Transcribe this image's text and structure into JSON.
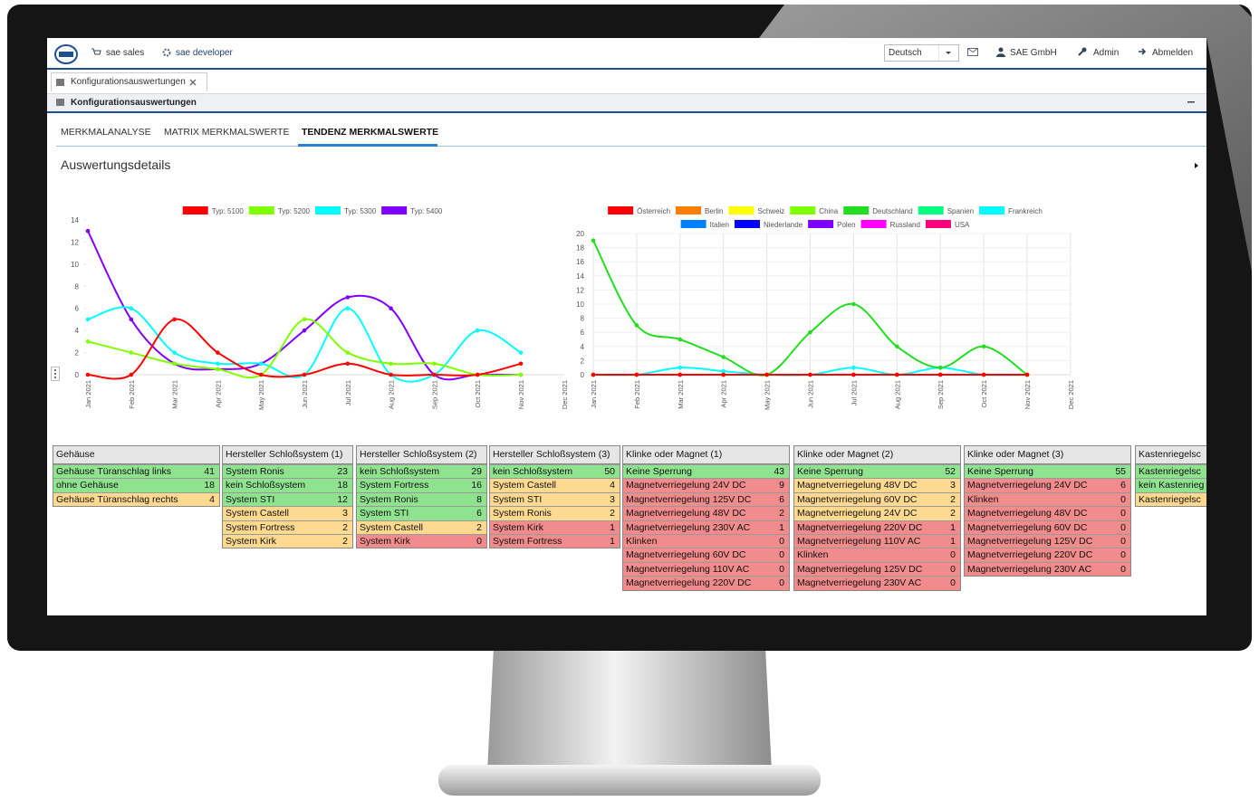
{
  "header": {
    "nav": [
      "sae sales",
      "sae developer"
    ],
    "language": "Deutsch",
    "company": "SAE GmbH",
    "user": "Admin",
    "logout": "Abmelden"
  },
  "tab": "Konfigurationsauswertungen",
  "panel_title": "Konfigurationsauswertungen",
  "subtabs": [
    "MERKMALANALYSE",
    "MATRIX MERKMALSWERTE",
    "TENDENZ MERKMALSWERTE"
  ],
  "section_title": "Auswertungsdetails",
  "chart_data": [
    {
      "type": "line",
      "legend": "top",
      "grid": false,
      "categories": [
        "Jan 2021",
        "Feb 2021",
        "Mar 2021",
        "Apr 2021",
        "May 2021",
        "Jun 2021",
        "Jul 2021",
        "Aug 2021",
        "Sep 2021",
        "Oct 2021",
        "Nov 2021",
        "Dec 2021"
      ],
      "ylim": [
        0,
        14
      ],
      "yticks": [
        0,
        2,
        4,
        6,
        8,
        10,
        12,
        14
      ],
      "series": [
        {
          "name": "Typ: 5100",
          "color": "#ff0000",
          "values": [
            0,
            0,
            5,
            2,
            0,
            0,
            1,
            0,
            0,
            0,
            1,
            null
          ]
        },
        {
          "name": "Typ: 5200",
          "color": "#80ff00",
          "values": [
            3,
            2,
            1,
            0.5,
            0,
            5,
            2,
            1,
            1,
            0,
            0,
            null
          ]
        },
        {
          "name": "Typ: 5300",
          "color": "#00ffff",
          "values": [
            5,
            6,
            2,
            1,
            1,
            0,
            6,
            0,
            0,
            4,
            2,
            null
          ]
        },
        {
          "name": "Typ: 5400",
          "color": "#8000ff",
          "values": [
            13,
            5,
            1,
            0.5,
            1,
            4,
            7,
            6,
            0,
            0,
            0,
            null
          ]
        }
      ]
    },
    {
      "type": "line",
      "legend": "top",
      "grid": true,
      "categories": [
        "Jan 2021",
        "Feb 2021",
        "Mar 2021",
        "Apr 2021",
        "May 2021",
        "Jun 2021",
        "Jul 2021",
        "Aug 2021",
        "Sep 2021",
        "Oct 2021",
        "Nov 2021",
        "Dec 2021"
      ],
      "ylim": [
        0,
        20
      ],
      "yticks": [
        0,
        2,
        4,
        6,
        8,
        10,
        12,
        14,
        16,
        18,
        20
      ],
      "series": [
        {
          "name": "Österreich",
          "color": "#ff0000",
          "values": [
            0,
            0,
            0,
            0,
            0,
            0,
            0,
            0,
            0,
            0,
            0,
            null
          ]
        },
        {
          "name": "Berlin",
          "color": "#ff8000",
          "values": [
            0,
            0,
            0,
            0,
            0,
            0,
            0,
            0,
            0,
            0,
            0,
            null
          ]
        },
        {
          "name": "Schweiz",
          "color": "#ffff00",
          "values": [
            0,
            0,
            0,
            0,
            0,
            0,
            0,
            0,
            0,
            0,
            0,
            null
          ]
        },
        {
          "name": "China",
          "color": "#80ff00",
          "values": [
            0,
            0,
            0,
            0,
            0,
            0,
            0,
            0,
            0,
            0,
            0,
            null
          ]
        },
        {
          "name": "Deutschland",
          "color": "#22dd22",
          "values": [
            19,
            7,
            5,
            2.5,
            0,
            6,
            10,
            4,
            1,
            4,
            0,
            null
          ]
        },
        {
          "name": "Spanien",
          "color": "#00ff80",
          "values": [
            0,
            0,
            0,
            0,
            0,
            0,
            0,
            0,
            0,
            0,
            0,
            null
          ]
        },
        {
          "name": "Frankreich",
          "color": "#00ffff",
          "values": [
            0,
            0,
            1,
            0.5,
            0,
            0,
            1,
            0,
            1,
            0,
            0,
            null
          ]
        },
        {
          "name": "Italien",
          "color": "#0080ff",
          "values": [
            0,
            0,
            0,
            0,
            0,
            0,
            0,
            0,
            0,
            0,
            0,
            null
          ]
        },
        {
          "name": "Niederlande",
          "color": "#0000ff",
          "values": [
            0,
            0,
            0,
            0,
            0,
            0,
            0,
            0,
            0,
            0,
            0,
            null
          ]
        },
        {
          "name": "Polen",
          "color": "#8000ff",
          "values": [
            0,
            0,
            0,
            0,
            0,
            0,
            0,
            0,
            0,
            0,
            0,
            null
          ]
        },
        {
          "name": "Russland",
          "color": "#ff00ff",
          "values": [
            0,
            0,
            0,
            0,
            0,
            0,
            0,
            0,
            0,
            0,
            0,
            null
          ]
        },
        {
          "name": "USA",
          "color": "#ff0080",
          "values": [
            0,
            0,
            0,
            0,
            0,
            0,
            0,
            0,
            0,
            0,
            0,
            null
          ]
        }
      ]
    }
  ],
  "tables": [
    {
      "title": "Gehäuse",
      "rows": [
        {
          "label": "Gehäuse Türanschlag links",
          "value": 41,
          "color": "#8fe38f"
        },
        {
          "label": "ohne Gehäuse",
          "value": 18,
          "color": "#8fe38f"
        },
        {
          "label": "Gehäuse Türanschlag rechts",
          "value": 4,
          "color": "#ffd98f"
        }
      ]
    },
    {
      "title": "Hersteller Schloßsystem (1)",
      "rows": [
        {
          "label": "System Ronis",
          "value": 23,
          "color": "#8fe38f"
        },
        {
          "label": "kein Schloßsystem",
          "value": 18,
          "color": "#8fe38f"
        },
        {
          "label": "System STI",
          "value": 12,
          "color": "#8fe38f"
        },
        {
          "label": "System Castell",
          "value": 3,
          "color": "#ffd98f"
        },
        {
          "label": "System Fortress",
          "value": 2,
          "color": "#ffd98f"
        },
        {
          "label": "System Kirk",
          "value": 2,
          "color": "#ffd98f"
        }
      ]
    },
    {
      "title": "Hersteller Schloßsystem (2)",
      "rows": [
        {
          "label": "kein Schloßsystem",
          "value": 29,
          "color": "#8fe38f"
        },
        {
          "label": "System Fortress",
          "value": 16,
          "color": "#8fe38f"
        },
        {
          "label": "System Ronis",
          "value": 8,
          "color": "#8fe38f"
        },
        {
          "label": "System STI",
          "value": 6,
          "color": "#8fe38f"
        },
        {
          "label": "System Castell",
          "value": 2,
          "color": "#ffd98f"
        },
        {
          "label": "System Kirk",
          "value": 0,
          "color": "#f28b8b"
        }
      ]
    },
    {
      "title": "Hersteller Schloßsystem (3)",
      "rows": [
        {
          "label": "kein Schloßsystem",
          "value": 50,
          "color": "#8fe38f"
        },
        {
          "label": "System Castell",
          "value": 4,
          "color": "#ffd98f"
        },
        {
          "label": "System STI",
          "value": 3,
          "color": "#ffd98f"
        },
        {
          "label": "System Ronis",
          "value": 2,
          "color": "#ffd98f"
        },
        {
          "label": "System Kirk",
          "value": 1,
          "color": "#f28b8b"
        },
        {
          "label": "System Fortress",
          "value": 1,
          "color": "#f28b8b"
        }
      ]
    },
    {
      "title": "Klinke oder Magnet (1)",
      "rows": [
        {
          "label": "Keine Sperrung",
          "value": 43,
          "color": "#8fe38f"
        },
        {
          "label": "Magnetverriegelung 24V DC",
          "value": 9,
          "color": "#f28b8b"
        },
        {
          "label": "Magnetverriegelung 125V DC",
          "value": 6,
          "color": "#f28b8b"
        },
        {
          "label": "Magnetverriegelung 48V DC",
          "value": 2,
          "color": "#f28b8b"
        },
        {
          "label": "Magnetverriegelung 230V AC",
          "value": 1,
          "color": "#f28b8b"
        },
        {
          "label": "Klinken",
          "value": 0,
          "color": "#f28b8b"
        },
        {
          "label": "Magnetverriegelung 60V DC",
          "value": 0,
          "color": "#f28b8b"
        },
        {
          "label": "Magnetverriegelung 110V AC",
          "value": 0,
          "color": "#f28b8b"
        },
        {
          "label": "Magnetverriegelung 220V DC",
          "value": 0,
          "color": "#f28b8b"
        }
      ]
    },
    {
      "title": "Klinke oder Magnet (2)",
      "rows": [
        {
          "label": "Keine Sperrung",
          "value": 52,
          "color": "#8fe38f"
        },
        {
          "label": "Magnetverriegelung 48V DC",
          "value": 3,
          "color": "#ffd98f"
        },
        {
          "label": "Magnetverriegelung 60V DC",
          "value": 2,
          "color": "#ffd98f"
        },
        {
          "label": "Magnetverriegelung 24V DC",
          "value": 2,
          "color": "#ffd98f"
        },
        {
          "label": "Magnetverriegelung 220V DC",
          "value": 1,
          "color": "#f28b8b"
        },
        {
          "label": "Magnetverriegelung 110V AC",
          "value": 1,
          "color": "#f28b8b"
        },
        {
          "label": "Klinken",
          "value": 0,
          "color": "#f28b8b"
        },
        {
          "label": "Magnetverriegelung 125V DC",
          "value": 0,
          "color": "#f28b8b"
        },
        {
          "label": "Magnetverriegelung 230V AC",
          "value": 0,
          "color": "#f28b8b"
        }
      ]
    },
    {
      "title": "Klinke oder Magnet (3)",
      "rows": [
        {
          "label": "Keine Sperrung",
          "value": 55,
          "color": "#8fe38f"
        },
        {
          "label": "Magnetverriegelung 24V DC",
          "value": 6,
          "color": "#f28b8b"
        },
        {
          "label": "Klinken",
          "value": 0,
          "color": "#f28b8b"
        },
        {
          "label": "Magnetverriegelung 48V DC",
          "value": 0,
          "color": "#f28b8b"
        },
        {
          "label": "Magnetverriegelung 60V DC",
          "value": 0,
          "color": "#f28b8b"
        },
        {
          "label": "Magnetverriegelung 125V DC",
          "value": 0,
          "color": "#f28b8b"
        },
        {
          "label": "Magnetverriegelung 220V DC",
          "value": 0,
          "color": "#f28b8b"
        },
        {
          "label": "Magnetverriegelung 230V AC",
          "value": 0,
          "color": "#f28b8b"
        }
      ]
    },
    {
      "title": "Kastenriegelsc",
      "rows": [
        {
          "label": "Kastenriegelsc",
          "color": "#8fe38f"
        },
        {
          "label": "kein Kastenrieg",
          "color": "#8fe38f"
        },
        {
          "label": "Kastenriegelsc",
          "color": "#ffd98f"
        }
      ]
    }
  ]
}
